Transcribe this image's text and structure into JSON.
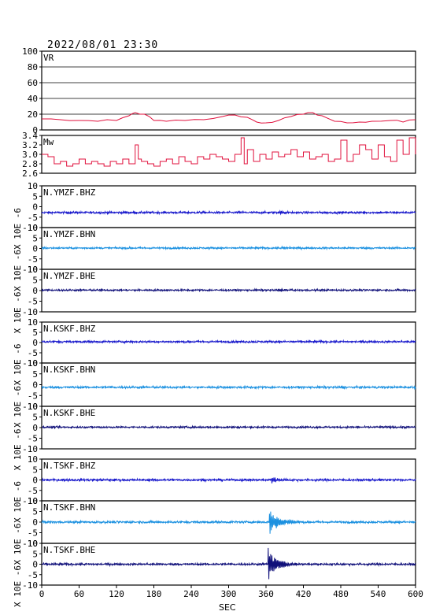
{
  "header": {
    "datetime": "2022/08/01 23:30"
  },
  "colors": {
    "frame": "#000000",
    "vr_mw": "#e0103c",
    "bhz": "#1a1acc",
    "bhn": "#1a90e0",
    "bhe": "#10107a",
    "grid": "#000000"
  },
  "chart_data": [
    {
      "type": "line",
      "label": "VR",
      "ylim": [
        0,
        100
      ],
      "yticks": [
        "100",
        "80",
        "60",
        "40",
        "20",
        "0"
      ],
      "grid": true,
      "series": [
        {
          "x": [
            0,
            30,
            60,
            90,
            120,
            140,
            150,
            165,
            180,
            200,
            230,
            260,
            290,
            310,
            330,
            345,
            360,
            380,
            400,
            420,
            435,
            450,
            470,
            490,
            510,
            530,
            560,
            580,
            600
          ],
          "values": [
            14,
            13,
            12,
            11,
            12,
            18,
            22,
            20,
            12,
            11,
            12,
            13,
            17,
            19,
            16,
            10,
            9,
            12,
            17,
            20,
            22,
            18,
            11,
            9,
            10,
            11,
            12,
            10,
            13
          ]
        }
      ]
    },
    {
      "type": "line",
      "label": "Mw",
      "ylim": [
        2.6,
        3.4
      ],
      "yticks": [
        "3.4",
        "3.2",
        "3.0",
        "2.8",
        "2.6"
      ],
      "series": [
        {
          "x": [
            0,
            10,
            20,
            30,
            40,
            50,
            60,
            70,
            80,
            90,
            100,
            110,
            120,
            130,
            140,
            150,
            155,
            160,
            170,
            180,
            190,
            200,
            210,
            220,
            230,
            240,
            250,
            260,
            270,
            280,
            290,
            300,
            310,
            320,
            325,
            330,
            340,
            350,
            360,
            370,
            380,
            390,
            400,
            410,
            420,
            430,
            440,
            450,
            460,
            470,
            480,
            490,
            500,
            510,
            520,
            530,
            540,
            550,
            560,
            570,
            580,
            590,
            600
          ],
          "values": [
            3.0,
            2.95,
            2.8,
            2.85,
            2.75,
            2.8,
            2.9,
            2.8,
            2.85,
            2.8,
            2.75,
            2.85,
            2.8,
            2.9,
            2.8,
            3.2,
            2.9,
            2.85,
            2.8,
            2.75,
            2.85,
            2.9,
            2.8,
            2.95,
            2.85,
            2.8,
            2.95,
            2.9,
            3.0,
            2.95,
            2.9,
            2.85,
            3.0,
            3.35,
            2.8,
            3.1,
            2.85,
            3.0,
            2.9,
            3.05,
            2.95,
            3.0,
            3.1,
            2.95,
            3.05,
            2.9,
            2.95,
            3.0,
            2.85,
            2.9,
            3.3,
            2.85,
            3.0,
            3.2,
            3.1,
            2.9,
            3.2,
            2.95,
            2.85,
            3.3,
            3.0,
            3.35,
            3.0
          ]
        }
      ]
    },
    {
      "type": "line",
      "label": "N.YMZF.BHZ",
      "color_key": "bhz",
      "ylim": [
        -10,
        10
      ],
      "yticks": [
        "10",
        "5",
        "0",
        "-5",
        "-10"
      ],
      "ylabel": "X 10E -6",
      "offset": -2.8,
      "noise": 0.35,
      "events": [
        {
          "t": 380,
          "amp": 0.6,
          "dur": 30
        }
      ]
    },
    {
      "type": "line",
      "label": "N.YMZF.BHN",
      "color_key": "bhn",
      "ylim": [
        -10,
        10
      ],
      "yticks": [
        "10",
        "5",
        "0",
        "-5",
        "-10"
      ],
      "ylabel": "X 10E -6",
      "offset": 0.2,
      "noise": 0.3,
      "events": [
        {
          "t": 385,
          "amp": 0.6,
          "dur": 30
        }
      ]
    },
    {
      "type": "line",
      "label": "N.YMZF.BHE",
      "color_key": "bhe",
      "ylim": [
        -10,
        10
      ],
      "yticks": [
        "10",
        "5",
        "0",
        "-5",
        "-10"
      ],
      "ylabel": "X 10E -6",
      "offset": 0.2,
      "noise": 0.3,
      "events": [
        {
          "t": 385,
          "amp": 0.7,
          "dur": 25
        }
      ]
    },
    {
      "type": "line",
      "label": "N.KSKF.BHZ",
      "color_key": "bhz",
      "ylim": [
        -10,
        10
      ],
      "yticks": [
        "10",
        "5",
        "0",
        "-5",
        "-10"
      ],
      "ylabel": "X 10E -6",
      "offset": 0.4,
      "noise": 0.35,
      "events": []
    },
    {
      "type": "line",
      "label": "N.KSKF.BHN",
      "color_key": "bhn",
      "ylim": [
        -10,
        10
      ],
      "yticks": [
        "10",
        "5",
        "0",
        "-5",
        "-10"
      ],
      "ylabel": "X 10E -6",
      "offset": -1.2,
      "noise": 0.35,
      "events": []
    },
    {
      "type": "line",
      "label": "N.KSKF.BHE",
      "color_key": "bhe",
      "ylim": [
        -10,
        10
      ],
      "yticks": [
        "10",
        "5",
        "0",
        "-5",
        "-10"
      ],
      "ylabel": "X 10E -6",
      "offset": 0.2,
      "noise": 0.3,
      "events": []
    },
    {
      "type": "line",
      "label": "N.TSKF.BHZ",
      "color_key": "bhz",
      "ylim": [
        -10,
        10
      ],
      "yticks": [
        "10",
        "5",
        "0",
        "-5",
        "-10"
      ],
      "ylabel": "X 10E -6",
      "offset": 0.0,
      "noise": 0.35,
      "events": [
        {
          "t": 368,
          "amp": 1.2,
          "dur": 40
        }
      ]
    },
    {
      "type": "line",
      "label": "N.TSKF.BHN",
      "color_key": "bhn",
      "ylim": [
        -10,
        10
      ],
      "yticks": [
        "10",
        "5",
        "0",
        "-5",
        "-10"
      ],
      "ylabel": "X 10E -6",
      "offset": 0.0,
      "noise": 0.35,
      "events": [
        {
          "t": 365,
          "amp": 4.5,
          "dur": 50
        }
      ]
    },
    {
      "type": "line",
      "label": "N.TSKF.BHE",
      "color_key": "bhe",
      "ylim": [
        -10,
        10
      ],
      "yticks": [
        "10",
        "5",
        "0",
        "-5",
        "-10"
      ],
      "ylabel": "X 10E -6",
      "offset": 0.0,
      "noise": 0.35,
      "events": [
        {
          "t": 363,
          "amp": 6.0,
          "dur": 45
        }
      ]
    }
  ],
  "xaxis": {
    "label": "SEC",
    "xlim": [
      0,
      600
    ],
    "ticks": [
      "0",
      "60",
      "120",
      "180",
      "240",
      "300",
      "360",
      "420",
      "480",
      "540",
      "600"
    ]
  }
}
